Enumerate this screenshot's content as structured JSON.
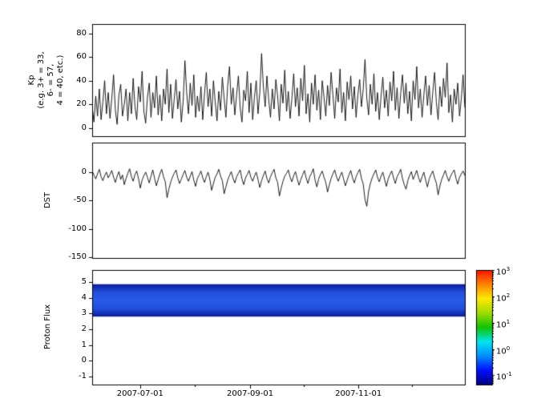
{
  "figure": {
    "background": "#ffffff",
    "axes_color": "#000000",
    "xaxis": {
      "start": "2007-06-04",
      "end": "2007-12-31",
      "major_ticks": [
        "2007-07-01",
        "2007-09-01",
        "2007-11-01"
      ],
      "minor_ticks": [
        "2007-08-01",
        "2007-10-01",
        "2007-12-01"
      ],
      "tick_labels": [
        "2007-07-01",
        "2007-09-01",
        "2007-11-01"
      ]
    }
  },
  "chart_data": [
    {
      "type": "line",
      "name": "kp-index",
      "ylabel": "Kp (e.g. 3+ = 33, 6- = 57, 4 = 40, etc.)",
      "ylabel_lines": [
        "Kp",
        "(e.g. 3+ = 33,",
        "6- = 57,",
        "4 = 40, etc.)"
      ],
      "ylim": [
        -7,
        88
      ],
      "yticks": [
        0,
        20,
        40,
        60,
        80
      ],
      "line_color": "#000000",
      "x_start": "2007-06-04",
      "x_end": "2007-12-31",
      "values": [
        18,
        5,
        27,
        10,
        33,
        7,
        22,
        40,
        12,
        30,
        8,
        25,
        45,
        15,
        3,
        28,
        37,
        10,
        20,
        33,
        6,
        30,
        12,
        42,
        18,
        7,
        35,
        22,
        48,
        14,
        4,
        26,
        38,
        9,
        30,
        17,
        44,
        11,
        28,
        6,
        33,
        20,
        50,
        13,
        37,
        8,
        24,
        41,
        16,
        31,
        5,
        22,
        57,
        30,
        12,
        38,
        19,
        45,
        9,
        27,
        14,
        35,
        7,
        29,
        47,
        18,
        33,
        10,
        40,
        22,
        6,
        31,
        15,
        43,
        25,
        9,
        36,
        52,
        20,
        34,
        11,
        28,
        44,
        17,
        5,
        32,
        23,
        48,
        13,
        38,
        7,
        26,
        40,
        12,
        30,
        63,
        35,
        18,
        44,
        24,
        9,
        33,
        16,
        41,
        27,
        6,
        37,
        21,
        49,
        14,
        31,
        8,
        25,
        46,
        18,
        34,
        10,
        42,
        23,
        53,
        12,
        29,
        5,
        38,
        20,
        45,
        15,
        32,
        7,
        40,
        26,
        10,
        36,
        19,
        47,
        28,
        8,
        34,
        22,
        50,
        13,
        30,
        6,
        39,
        24,
        44,
        16,
        35,
        9,
        28,
        41,
        18,
        33,
        58,
        25,
        11,
        37,
        20,
        46,
        14,
        30,
        7,
        27,
        43,
        17,
        32,
        10,
        39,
        23,
        48,
        15,
        34,
        8,
        29,
        45,
        21,
        38,
        12,
        31,
        6,
        40,
        24,
        52,
        17,
        33,
        9,
        28,
        44,
        19,
        36,
        11,
        30,
        47,
        22,
        7,
        35,
        18,
        42,
        26,
        55,
        13,
        28,
        5,
        33,
        20,
        38,
        10,
        25,
        45,
        17
      ]
    },
    {
      "type": "line",
      "name": "dst-index",
      "ylabel": "DST",
      "ylim": [
        -151,
        52
      ],
      "yticks": [
        0,
        -50,
        -100,
        -150
      ],
      "line_color": "#000000",
      "x_start": "2007-06-04",
      "x_end": "2007-12-31",
      "values": [
        2,
        -5,
        -12,
        -3,
        5,
        -8,
        -15,
        -6,
        0,
        -10,
        -4,
        3,
        -9,
        -18,
        -7,
        1,
        -13,
        -5,
        -22,
        -11,
        -2,
        6,
        -8,
        -16,
        -4,
        2,
        -12,
        -28,
        -14,
        -6,
        0,
        -9,
        -19,
        -7,
        4,
        -11,
        -24,
        -13,
        -3,
        5,
        -8,
        -17,
        -45,
        -30,
        -18,
        -9,
        -2,
        4,
        -10,
        -20,
        -12,
        -4,
        3,
        -9,
        -16,
        -7,
        1,
        -14,
        -25,
        -11,
        -5,
        2,
        -10,
        -18,
        -8,
        0,
        -13,
        -32,
        -20,
        -9,
        -3,
        5,
        -7,
        -15,
        -38,
        -26,
        -14,
        -6,
        1,
        -11,
        -19,
        -8,
        -2,
        4,
        -12,
        -22,
        -10,
        -4,
        3,
        -9,
        -16,
        -7,
        0,
        -13,
        -27,
        -15,
        -6,
        2,
        -11,
        -19,
        -8,
        -1,
        5,
        -10,
        -18,
        -42,
        -28,
        -16,
        -7,
        -2,
        4,
        -9,
        -17,
        -6,
        1,
        -12,
        -23,
        -13,
        -5,
        3,
        -10,
        -20,
        -8,
        -2,
        6,
        -14,
        -26,
        -12,
        -4,
        2,
        -9,
        -18,
        -35,
        -22,
        -11,
        -3,
        4,
        -8,
        -16,
        -7,
        0,
        -12,
        -24,
        -14,
        -5,
        3,
        -10,
        -19,
        -8,
        -1,
        5,
        -11,
        -21,
        -48,
        -60,
        -34,
        -20,
        -10,
        -3,
        4,
        -9,
        -17,
        -7,
        0,
        -13,
        -25,
        -12,
        -4,
        2,
        -10,
        -20,
        -8,
        -2,
        5,
        -11,
        -22,
        -30,
        -15,
        -6,
        1,
        -13,
        -5,
        3,
        -9,
        -18,
        -8,
        0,
        -14,
        -26,
        -12,
        -4,
        2,
        -10,
        -19,
        -40,
        -24,
        -13,
        -5,
        3,
        -8,
        -16,
        -7,
        -1,
        4,
        -11,
        -21,
        -9,
        -3,
        2,
        -6
      ]
    },
    {
      "type": "heatmap",
      "name": "proton-flux",
      "ylabel": "Proton Flux",
      "ylim": [
        -1.5,
        5.75
      ],
      "yticks": [
        5,
        4,
        3,
        2,
        1,
        0,
        -1
      ],
      "band": {
        "y_top": 4.85,
        "y_bottom": 2.8,
        "gradient": [
          "#0b1c9c",
          "#2050dc",
          "#2a5ae8",
          "#2050dc",
          "#0b1c9c"
        ]
      },
      "colorbar": {
        "scale": "log",
        "exp_range": [
          -1.35,
          3
        ],
        "tick_exponents": [
          3,
          2,
          1,
          0,
          -1
        ],
        "tick_base": "10",
        "gradient_bottom_to_top": [
          "#000085",
          "#0010ff",
          "#0090ff",
          "#00e5ee",
          "#10c400",
          "#9fdd00",
          "#ffe900",
          "#ff8400",
          "#ff1000"
        ]
      }
    }
  ]
}
